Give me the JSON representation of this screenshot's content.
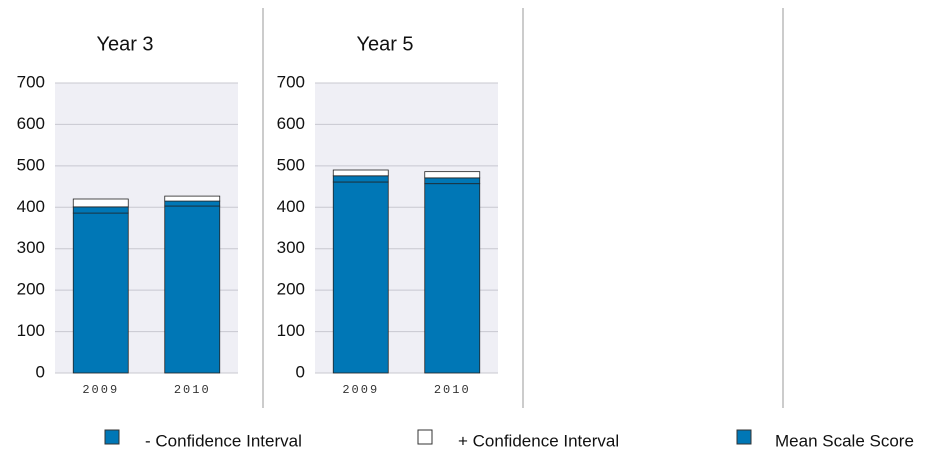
{
  "chart_data": [
    {
      "type": "bar",
      "title": "Year 3",
      "categories": [
        "2009",
        "2010"
      ],
      "series": [
        {
          "name": "- Confidence Interval",
          "color": "#0077b6",
          "values": [
            386,
            403
          ]
        },
        {
          "name": "Mean Scale Score",
          "color": "#0077b6",
          "values": [
            15,
            12
          ]
        },
        {
          "name": "+ Confidence Interval",
          "color": "#ffffff",
          "values": [
            19,
            12
          ]
        }
      ],
      "stacked": true,
      "ylim": [
        0,
        700
      ],
      "yticks": [
        0,
        100,
        200,
        300,
        400,
        500,
        600,
        700
      ],
      "grid": true
    },
    {
      "type": "bar",
      "title": "Year 5",
      "categories": [
        "2009",
        "2010"
      ],
      "series": [
        {
          "name": "- Confidence Interval",
          "color": "#0077b6",
          "values": [
            461,
            457
          ]
        },
        {
          "name": "Mean Scale Score",
          "color": "#0077b6",
          "values": [
            15,
            14
          ]
        },
        {
          "name": "+ Confidence Interval",
          "color": "#ffffff",
          "values": [
            14,
            15
          ]
        }
      ],
      "stacked": true,
      "ylim": [
        0,
        700
      ],
      "yticks": [
        0,
        100,
        200,
        300,
        400,
        500,
        600,
        700
      ],
      "grid": true
    }
  ]
}
